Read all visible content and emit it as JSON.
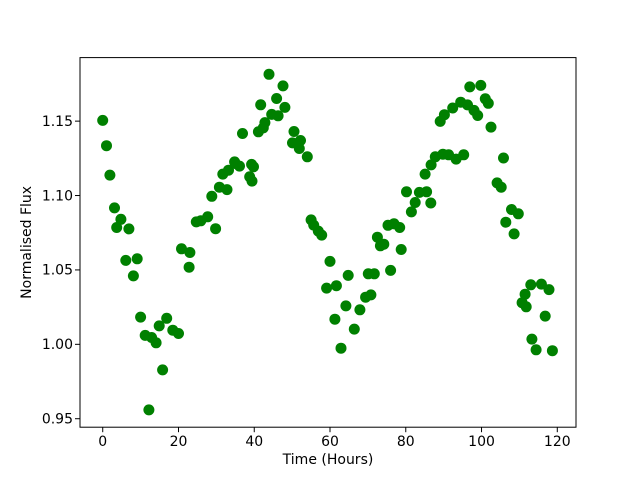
{
  "chart_data": {
    "type": "scatter",
    "title": "",
    "xlabel": "Time (Hours)",
    "ylabel": "Normalised Flux",
    "legend": null,
    "grid": false,
    "marker_color": "#008000",
    "background_color": "#ffffff",
    "axis_color": "#000000",
    "xlim": [
      -6.0,
      124.94
    ],
    "ylim": [
      0.9443,
      1.1927
    ],
    "xtick_values": [
      0,
      20,
      40,
      60,
      80,
      100,
      120
    ],
    "xtick_labels": [
      "0",
      "20",
      "40",
      "60",
      "80",
      "100",
      "120"
    ],
    "ytick_values": [
      0.95,
      1.0,
      1.05,
      1.1,
      1.15
    ],
    "ytick_labels": [
      "0.95",
      "1.00",
      "1.05",
      "1.10",
      "1.15"
    ],
    "series_name": "normalised-flux-vs-time",
    "points": [
      [
        0.0,
        1.1505
      ],
      [
        1.0,
        1.1335
      ],
      [
        1.9,
        1.1137
      ],
      [
        3.1,
        1.0917
      ],
      [
        3.7,
        1.0785
      ],
      [
        4.8,
        1.084
      ],
      [
        6.1,
        1.0564
      ],
      [
        6.9,
        1.0776
      ],
      [
        8.1,
        1.046
      ],
      [
        9.1,
        1.0575
      ],
      [
        10.0,
        1.0183
      ],
      [
        11.2,
        1.006
      ],
      [
        12.2,
        0.9559
      ],
      [
        12.9,
        1.0046
      ],
      [
        14.1,
        1.001
      ],
      [
        14.9,
        1.0124
      ],
      [
        15.8,
        0.9828
      ],
      [
        16.9,
        1.0175
      ],
      [
        18.5,
        1.0095
      ],
      [
        20.0,
        1.0073
      ],
      [
        20.8,
        1.0642
      ],
      [
        22.8,
        1.0518
      ],
      [
        23.0,
        1.0617
      ],
      [
        24.7,
        1.0823
      ],
      [
        25.9,
        1.083
      ],
      [
        27.7,
        1.0857
      ],
      [
        28.8,
        1.0995
      ],
      [
        29.8,
        1.0777
      ],
      [
        30.8,
        1.1056
      ],
      [
        31.7,
        1.1144
      ],
      [
        32.8,
        1.104
      ],
      [
        33.2,
        1.117
      ],
      [
        34.8,
        1.1226
      ],
      [
        35.0,
        1.1215
      ],
      [
        36.1,
        1.1198
      ],
      [
        36.9,
        1.1417
      ],
      [
        38.8,
        1.1126
      ],
      [
        39.3,
        1.1209
      ],
      [
        39.4,
        1.1097
      ],
      [
        39.8,
        1.1193
      ],
      [
        41.1,
        1.1428
      ],
      [
        41.7,
        1.161
      ],
      [
        42.4,
        1.1455
      ],
      [
        42.8,
        1.149
      ],
      [
        43.9,
        1.1815
      ],
      [
        44.6,
        1.1545
      ],
      [
        45.9,
        1.1652
      ],
      [
        46.3,
        1.1536
      ],
      [
        47.6,
        1.1737
      ],
      [
        48.1,
        1.1592
      ],
      [
        50.1,
        1.1354
      ],
      [
        50.5,
        1.143
      ],
      [
        51.9,
        1.1316
      ],
      [
        52.2,
        1.137
      ],
      [
        54.0,
        1.126
      ],
      [
        55.0,
        1.0836
      ],
      [
        55.7,
        1.0801
      ],
      [
        56.9,
        1.0761
      ],
      [
        57.8,
        1.0734
      ],
      [
        59.1,
        1.0378
      ],
      [
        60.0,
        1.0557
      ],
      [
        61.3,
        1.0169
      ],
      [
        61.7,
        1.0394
      ],
      [
        62.9,
        0.9974
      ],
      [
        64.2,
        1.0258
      ],
      [
        64.8,
        1.0463
      ],
      [
        66.4,
        1.0102
      ],
      [
        67.9,
        1.0232
      ],
      [
        69.4,
        1.0317
      ],
      [
        70.1,
        1.0474
      ],
      [
        70.8,
        1.0332
      ],
      [
        71.7,
        1.0474
      ],
      [
        72.5,
        1.072
      ],
      [
        73.3,
        1.0662
      ],
      [
        74.2,
        1.0673
      ],
      [
        75.3,
        1.08
      ],
      [
        76.0,
        1.0497
      ],
      [
        76.9,
        1.081
      ],
      [
        78.4,
        1.0785
      ],
      [
        78.8,
        1.0637
      ],
      [
        80.2,
        1.1025
      ],
      [
        81.5,
        1.089
      ],
      [
        82.5,
        1.0953
      ],
      [
        83.6,
        1.1021
      ],
      [
        85.1,
        1.1144
      ],
      [
        85.5,
        1.1025
      ],
      [
        86.6,
        1.095
      ],
      [
        86.7,
        1.1206
      ],
      [
        87.8,
        1.126
      ],
      [
        89.1,
        1.1498
      ],
      [
        89.8,
        1.1278
      ],
      [
        90.2,
        1.1543
      ],
      [
        91.3,
        1.1274
      ],
      [
        92.4,
        1.1588
      ],
      [
        93.3,
        1.1245
      ],
      [
        94.5,
        1.1627
      ],
      [
        95.3,
        1.1274
      ],
      [
        96.3,
        1.1609
      ],
      [
        96.9,
        1.173
      ],
      [
        98.0,
        1.1572
      ],
      [
        99.0,
        1.1538
      ],
      [
        99.8,
        1.174
      ],
      [
        101.0,
        1.165
      ],
      [
        101.8,
        1.162
      ],
      [
        102.5,
        1.146
      ],
      [
        104.1,
        1.1085
      ],
      [
        105.2,
        1.1056
      ],
      [
        105.8,
        1.1252
      ],
      [
        106.4,
        1.0821
      ],
      [
        107.9,
        1.0906
      ],
      [
        108.6,
        1.0742
      ],
      [
        109.7,
        1.0877
      ],
      [
        110.7,
        1.028
      ],
      [
        111.5,
        1.0337
      ],
      [
        111.8,
        1.0252
      ],
      [
        113.0,
        1.04
      ],
      [
        113.3,
        1.0035
      ],
      [
        114.4,
        0.9963
      ],
      [
        115.8,
        1.0405
      ],
      [
        116.8,
        1.019
      ],
      [
        117.8,
        1.0368
      ],
      [
        118.7,
        0.9957
      ]
    ]
  }
}
